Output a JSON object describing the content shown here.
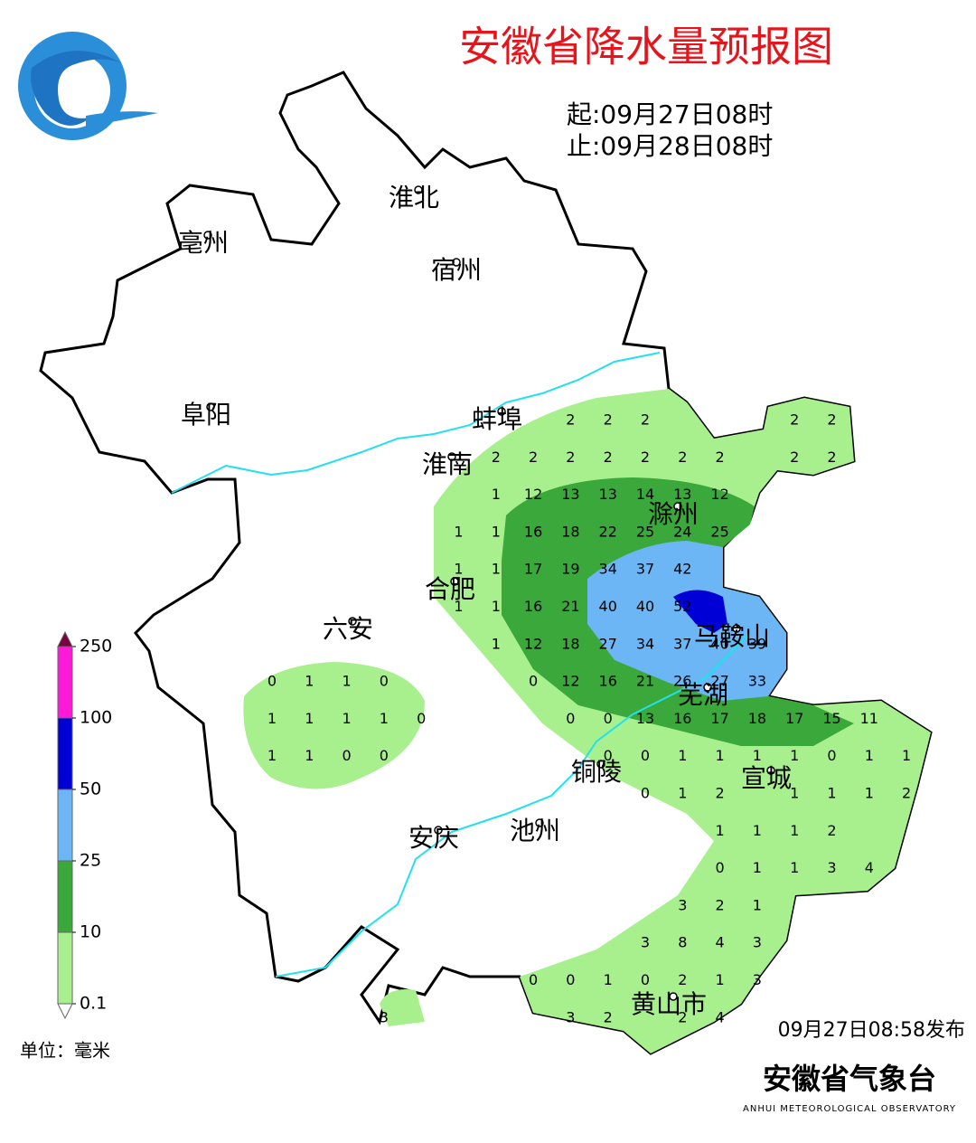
{
  "header": {
    "title": "安徽省降水量预报图",
    "start": "起:09月27日08时",
    "end": "止:09月28日08时"
  },
  "cities": [
    "淮北",
    "亳州",
    "宿州",
    "阜阳",
    "蚌埠",
    "淮南",
    "滁州",
    "合肥",
    "六安",
    "马鞍山",
    "芜湖",
    "铜陵",
    "宣城",
    "安庆",
    "池州",
    "黄山市"
  ],
  "legend": {
    "levels": [
      0.1,
      10,
      25,
      50,
      100,
      250
    ],
    "colors": [
      "#a8f08e",
      "#3aa83a",
      "#6cb6f6",
      "#0000d6",
      "#ff1ad9"
    ],
    "top_color": "#7a0040",
    "unit": "单位：毫米"
  },
  "grid": {
    "rows": [
      [
        null,
        null,
        null,
        null,
        null,
        null,
        null,
        null,
        2,
        2,
        2,
        null,
        null,
        null,
        2,
        2,
        null,
        null
      ],
      [
        null,
        null,
        null,
        null,
        null,
        null,
        2,
        2,
        2,
        2,
        2,
        2,
        2,
        null,
        2,
        2,
        null,
        null
      ],
      [
        null,
        null,
        null,
        null,
        null,
        null,
        1,
        12,
        13,
        13,
        14,
        13,
        12,
        null,
        null,
        null,
        null,
        null
      ],
      [
        null,
        null,
        null,
        null,
        null,
        1,
        1,
        16,
        18,
        22,
        25,
        24,
        25,
        null,
        null,
        null,
        null,
        null
      ],
      [
        null,
        null,
        null,
        null,
        null,
        1,
        1,
        17,
        19,
        34,
        37,
        42,
        null,
        null,
        null,
        null,
        null,
        null
      ],
      [
        null,
        null,
        null,
        null,
        null,
        1,
        1,
        16,
        21,
        40,
        40,
        52,
        null,
        null,
        null,
        null,
        null,
        null
      ],
      [
        null,
        null,
        null,
        null,
        null,
        null,
        1,
        12,
        18,
        27,
        34,
        37,
        40,
        39,
        null,
        null,
        null,
        null
      ],
      [
        0,
        1,
        1,
        0,
        null,
        null,
        null,
        0,
        12,
        16,
        21,
        26,
        27,
        33,
        null,
        null,
        null,
        null
      ],
      [
        1,
        1,
        1,
        1,
        0,
        null,
        null,
        null,
        0,
        0,
        13,
        16,
        17,
        18,
        17,
        15,
        11,
        null
      ],
      [
        1,
        1,
        0,
        0,
        null,
        null,
        null,
        null,
        null,
        0,
        0,
        1,
        1,
        1,
        1,
        0,
        1,
        1
      ],
      [
        null,
        null,
        null,
        null,
        null,
        null,
        null,
        null,
        null,
        null,
        0,
        1,
        2,
        null,
        1,
        1,
        1,
        2
      ],
      [
        null,
        null,
        null,
        null,
        null,
        null,
        null,
        null,
        null,
        null,
        null,
        null,
        1,
        1,
        1,
        2,
        null,
        null
      ],
      [
        null,
        null,
        null,
        null,
        null,
        null,
        null,
        null,
        null,
        null,
        null,
        null,
        0,
        1,
        1,
        3,
        4,
        null
      ],
      [
        null,
        null,
        null,
        null,
        null,
        null,
        null,
        null,
        null,
        null,
        null,
        3,
        2,
        1,
        null,
        null,
        null,
        null
      ],
      [
        null,
        null,
        null,
        null,
        null,
        null,
        null,
        null,
        null,
        null,
        3,
        8,
        4,
        3,
        null,
        null,
        null,
        null
      ],
      [
        null,
        null,
        null,
        null,
        null,
        null,
        null,
        0,
        0,
        1,
        0,
        2,
        1,
        3,
        null,
        null,
        null,
        null
      ],
      [
        null,
        null,
        null,
        3,
        null,
        null,
        null,
        null,
        3,
        2,
        null,
        2,
        4,
        null,
        null,
        null,
        null,
        null
      ]
    ]
  },
  "footer": {
    "published": "09月27日08:58发布",
    "organization": "安徽省气象台",
    "organization_en": "ANHUI METEOROLOGICAL OBSERVATORY"
  }
}
